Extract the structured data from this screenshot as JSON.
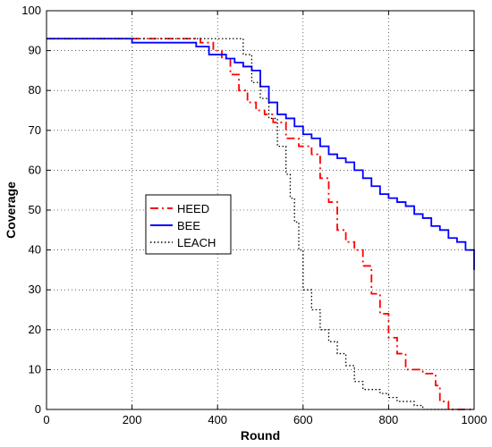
{
  "chart_data": {
    "type": "line",
    "title": "",
    "xlabel": "Round",
    "ylabel": "Coverage",
    "xlim": [
      0,
      1000
    ],
    "ylim": [
      0,
      100
    ],
    "xticks": [
      0,
      200,
      400,
      600,
      800,
      1000
    ],
    "yticks": [
      0,
      10,
      20,
      30,
      40,
      50,
      60,
      70,
      80,
      90,
      100
    ],
    "grid": true,
    "legend_position": "center-left",
    "series": [
      {
        "name": "HEED",
        "color": "#ff0000",
        "style": "dashdot",
        "x": [
          0,
          330,
          360,
          390,
          410,
          430,
          450,
          470,
          490,
          510,
          530,
          560,
          590,
          620,
          640,
          660,
          680,
          700,
          720,
          740,
          760,
          780,
          800,
          820,
          840,
          860,
          880,
          900,
          910,
          920,
          940,
          960,
          980,
          1000
        ],
        "y": [
          93,
          93,
          92,
          90,
          88,
          84,
          80,
          77,
          75,
          74,
          72,
          68,
          66,
          64,
          58,
          52,
          45,
          42,
          40,
          36,
          29,
          24,
          18,
          14,
          10,
          10,
          9,
          9,
          6,
          2,
          0,
          0,
          0,
          0
        ]
      },
      {
        "name": "BEE",
        "color": "#0000ff",
        "style": "solid",
        "x": [
          0,
          170,
          200,
          250,
          300,
          350,
          380,
          400,
          420,
          440,
          460,
          480,
          500,
          520,
          540,
          560,
          580,
          600,
          620,
          640,
          660,
          680,
          700,
          720,
          740,
          760,
          780,
          800,
          820,
          840,
          860,
          880,
          900,
          920,
          940,
          960,
          980,
          1000
        ],
        "y": [
          93,
          93,
          92,
          92,
          92,
          91,
          89,
          89,
          88,
          87,
          86,
          85,
          81,
          77,
          74,
          73,
          71,
          69,
          68,
          66,
          64,
          63,
          62,
          60,
          58,
          56,
          54,
          53,
          52,
          51,
          49,
          48,
          46,
          45,
          43,
          42,
          40,
          35
        ]
      },
      {
        "name": "LEACH",
        "color": "#000000",
        "style": "dotted",
        "x": [
          0,
          320,
          350,
          380,
          400,
          420,
          440,
          460,
          480,
          500,
          520,
          540,
          560,
          570,
          580,
          590,
          600,
          620,
          640,
          660,
          680,
          700,
          720,
          740,
          760,
          780,
          800,
          820,
          840,
          860,
          880,
          900,
          920,
          950,
          1000
        ],
        "y": [
          93,
          93,
          93,
          93,
          93,
          93,
          93,
          89,
          82,
          78,
          73,
          66,
          59,
          53,
          47,
          40,
          30,
          25,
          20,
          17,
          14,
          11,
          7,
          5,
          5,
          4,
          3,
          2,
          2,
          1,
          0,
          0,
          0,
          0,
          0
        ]
      }
    ]
  }
}
